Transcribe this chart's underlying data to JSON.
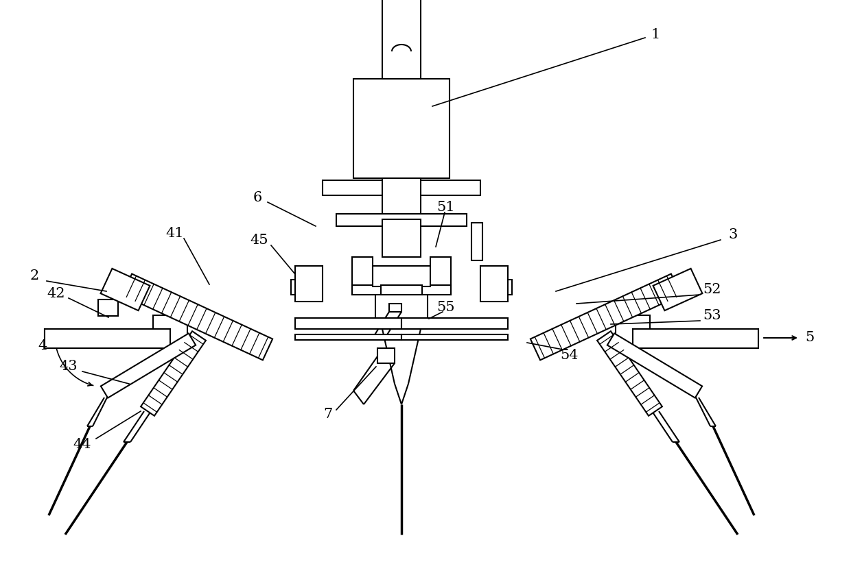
{
  "bg_color": "#ffffff",
  "line_color": "#000000",
  "lw": 1.5,
  "lw_thick": 2.5,
  "lw_thin": 0.9,
  "fig_width": 12.4,
  "fig_height": 8.39,
  "label_fontsize": 15
}
